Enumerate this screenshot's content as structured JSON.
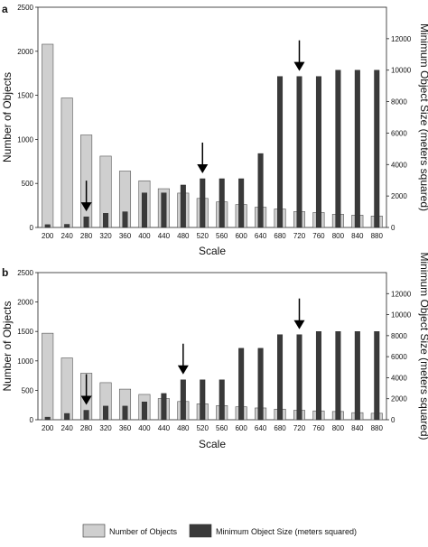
{
  "legend": {
    "items": [
      {
        "label": "Number of Objects",
        "color": "#cfcfcf"
      },
      {
        "label": "Minimum Object Size (meters squared)",
        "color": "#3a3a3a"
      }
    ],
    "placement": "bottom-center"
  },
  "chart_data": [
    {
      "type": "bar",
      "panel_label": "a",
      "xlabel": "Scale",
      "ylabel": "Number of Objects",
      "y2label": "Minimum Object Size (meters squared)",
      "ylim": [
        0,
        2500
      ],
      "y2lim": [
        0,
        14000
      ],
      "yticks": [
        0,
        500,
        1000,
        1500,
        2000,
        2500
      ],
      "y2ticks": [
        0,
        2000,
        4000,
        6000,
        8000,
        10000,
        12000
      ],
      "categories": [
        "200",
        "240",
        "280",
        "320",
        "360",
        "400",
        "440",
        "480",
        "520",
        "560",
        "600",
        "640",
        "680",
        "720",
        "760",
        "800",
        "840",
        "880"
      ],
      "series": [
        {
          "name": "Number of Objects",
          "axis": "left",
          "color": "#cfcfcf",
          "values": [
            2080,
            1470,
            1050,
            810,
            640,
            530,
            440,
            390,
            330,
            290,
            260,
            230,
            210,
            180,
            170,
            150,
            140,
            130
          ]
        },
        {
          "name": "Minimum Object Size (meters squared)",
          "axis": "right",
          "color": "#3a3a3a",
          "values": [
            180,
            200,
            680,
            900,
            1000,
            2200,
            2200,
            2700,
            3100,
            3100,
            3100,
            4700,
            9600,
            9600,
            9600,
            10000,
            10000,
            10000
          ]
        }
      ],
      "annotations": [
        {
          "type": "arrow",
          "category": "280"
        },
        {
          "type": "arrow",
          "category": "520"
        },
        {
          "type": "arrow",
          "category": "720"
        }
      ],
      "grid": false
    },
    {
      "type": "bar",
      "panel_label": "b",
      "xlabel": "Scale",
      "ylabel": "Number of Objects",
      "y2label": "Minimum Object Size (meters squared)",
      "ylim": [
        0,
        2500
      ],
      "y2lim": [
        0,
        14000
      ],
      "yticks": [
        0,
        500,
        1000,
        1500,
        2000,
        2500
      ],
      "y2ticks": [
        0,
        2000,
        4000,
        6000,
        8000,
        10000,
        12000
      ],
      "categories": [
        "200",
        "240",
        "280",
        "320",
        "360",
        "400",
        "440",
        "480",
        "520",
        "560",
        "600",
        "640",
        "680",
        "720",
        "760",
        "800",
        "840",
        "880"
      ],
      "series": [
        {
          "name": "Number of Objects",
          "axis": "left",
          "color": "#cfcfcf",
          "values": [
            1470,
            1050,
            790,
            630,
            520,
            430,
            360,
            310,
            270,
            240,
            220,
            200,
            180,
            160,
            150,
            140,
            120,
            110
          ]
        },
        {
          "name": "Minimum Object Size (meters squared)",
          "axis": "right",
          "color": "#3a3a3a",
          "values": [
            250,
            600,
            900,
            1300,
            1300,
            1700,
            2500,
            3800,
            3800,
            3800,
            6800,
            6800,
            8100,
            8100,
            8400,
            8400,
            8400,
            8400
          ]
        }
      ],
      "annotations": [
        {
          "type": "arrow",
          "category": "280"
        },
        {
          "type": "arrow",
          "category": "480"
        },
        {
          "type": "arrow",
          "category": "720"
        }
      ],
      "grid": false
    }
  ]
}
